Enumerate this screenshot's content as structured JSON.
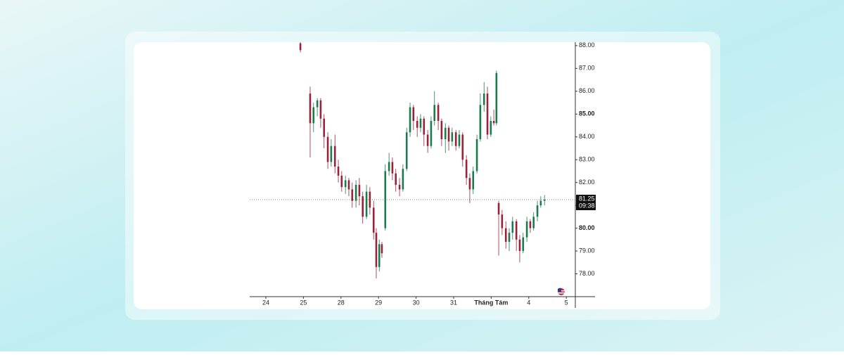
{
  "chart_data": {
    "type": "candlestick",
    "x": [
      0.92,
      1.18,
      1.27,
      1.37,
      1.46,
      1.55,
      1.65,
      1.74,
      1.84,
      1.93,
      2.02,
      2.12,
      2.21,
      2.3,
      2.4,
      2.49,
      2.58,
      2.68,
      2.77,
      2.87,
      2.94,
      3.02,
      3.09,
      3.18,
      3.28,
      3.37,
      3.46,
      3.56,
      3.65,
      3.75,
      3.84,
      3.93,
      4.03,
      4.12,
      4.21,
      4.31,
      4.4,
      4.49,
      4.59,
      4.68,
      4.78,
      4.87,
      4.96,
      5.06,
      5.15,
      5.24,
      5.34,
      5.43,
      5.52,
      5.62,
      5.71,
      5.81,
      5.9,
      5.99,
      6.07,
      6.14,
      6.2,
      6.29,
      6.39,
      6.48,
      6.57,
      6.67,
      6.76,
      6.85,
      6.95,
      7.04,
      7.13,
      7.23,
      7.32,
      7.42
    ],
    "open": [
      88.1,
      85.9,
      84.6,
      85.3,
      85.6,
      84.8,
      84.0,
      82.9,
      83.6,
      82.7,
      82.3,
      81.8,
      82.1,
      81.7,
      81.2,
      81.9,
      81.4,
      80.5,
      81.6,
      80.9,
      79.8,
      78.3,
      79.3,
      80.0,
      82.5,
      82.9,
      82.4,
      81.9,
      81.7,
      82.6,
      84.2,
      85.3,
      84.7,
      84.4,
      84.8,
      84.1,
      83.6,
      84.7,
      85.4,
      84.7,
      83.9,
      84.4,
      83.8,
      84.2,
      83.6,
      84.1,
      83.0,
      82.2,
      81.7,
      82.5,
      83.9,
      85.4,
      85.9,
      84.1,
      84.7,
      84.6,
      81.1,
      80.6,
      80.0,
      79.4,
      79.8,
      80.3,
      79.5,
      79.0,
      79.6,
      80.3,
      80.0,
      80.5,
      81.0,
      81.2
    ],
    "high": [
      88.15,
      86.2,
      85.5,
      85.7,
      85.7,
      85.0,
      84.2,
      83.9,
      84.1,
      83.0,
      82.5,
      82.3,
      82.2,
      82.0,
      82.1,
      82.2,
      81.6,
      81.9,
      81.8,
      81.2,
      80.0,
      79.5,
      79.4,
      82.8,
      83.3,
      83.1,
      82.6,
      82.2,
      82.8,
      84.4,
      85.5,
      85.4,
      84.9,
      85.0,
      84.9,
      84.3,
      84.9,
      86.0,
      85.5,
      84.8,
      84.6,
      84.5,
      84.4,
      84.3,
      84.3,
      84.2,
      83.2,
      82.4,
      82.7,
      84.1,
      85.9,
      86.4,
      86.2,
      84.9,
      85.2,
      86.9,
      81.2,
      80.8,
      80.3,
      80.0,
      80.5,
      80.4,
      79.7,
      79.8,
      80.5,
      80.4,
      80.7,
      81.2,
      81.4,
      81.45
    ],
    "low": [
      87.7,
      83.1,
      84.2,
      84.9,
      84.4,
      83.5,
      82.6,
      82.7,
      82.4,
      82.0,
      81.6,
      81.5,
      81.4,
      80.9,
      80.9,
      81.0,
      80.2,
      80.4,
      80.6,
      79.5,
      77.8,
      78.1,
      78.7,
      79.9,
      82.3,
      82.1,
      81.6,
      81.4,
      81.6,
      82.5,
      84.0,
      84.3,
      84.0,
      84.2,
      83.6,
      83.3,
      83.5,
      84.5,
      84.3,
      83.6,
      83.3,
      83.4,
      83.6,
      83.4,
      83.5,
      82.7,
      81.9,
      81.1,
      81.5,
      82.4,
      83.8,
      85.1,
      83.9,
      84.0,
      84.5,
      84.5,
      78.8,
      79.7,
      79.1,
      79.0,
      79.5,
      79.0,
      78.5,
      78.9,
      79.4,
      79.8,
      79.9,
      80.3,
      80.9,
      81.0
    ],
    "close": [
      87.8,
      84.6,
      85.3,
      85.6,
      84.8,
      84.0,
      82.9,
      83.6,
      82.7,
      82.3,
      81.8,
      82.1,
      81.7,
      81.2,
      81.9,
      81.4,
      80.5,
      81.6,
      80.9,
      79.8,
      78.3,
      79.3,
      78.9,
      82.5,
      82.9,
      82.4,
      81.9,
      81.7,
      82.6,
      84.2,
      85.3,
      84.7,
      84.4,
      84.8,
      84.1,
      83.6,
      84.7,
      85.4,
      84.7,
      83.9,
      84.4,
      83.8,
      84.2,
      83.6,
      84.1,
      83.0,
      82.2,
      81.7,
      82.5,
      83.9,
      85.4,
      85.9,
      84.1,
      84.7,
      84.6,
      86.8,
      80.6,
      80.0,
      79.4,
      79.8,
      80.3,
      79.5,
      79.0,
      79.6,
      80.3,
      80.0,
      80.5,
      81.0,
      81.2,
      81.25
    ],
    "xlim": [
      -0.43,
      8.24
    ],
    "xticks": [
      {
        "value": 0,
        "label": "24"
      },
      {
        "value": 1,
        "label": "25"
      },
      {
        "value": 2,
        "label": "28"
      },
      {
        "value": 3,
        "label": "29"
      },
      {
        "value": 4,
        "label": "30"
      },
      {
        "value": 5,
        "label": "31"
      },
      {
        "value": 6,
        "label": "Tháng Tám"
      },
      {
        "value": 7,
        "label": "4"
      },
      {
        "value": 8,
        "label": "5"
      }
    ],
    "ylim": [
      77.0,
      88.15
    ],
    "yticks": [
      {
        "value": 78,
        "label": "78.00"
      },
      {
        "value": 79,
        "label": "79.00"
      },
      {
        "value": 80,
        "label": "80.00"
      },
      {
        "value": 81,
        "label": "81.00"
      },
      {
        "value": 82,
        "label": "82.00"
      },
      {
        "value": 83,
        "label": "83.00"
      },
      {
        "value": 84,
        "label": "84.00"
      },
      {
        "value": 85,
        "label": "85.00"
      },
      {
        "value": 86,
        "label": "86.00"
      },
      {
        "value": 87,
        "label": "87.00"
      },
      {
        "value": 88,
        "label": "88.00"
      }
    ],
    "up_color": "#1c7a4f",
    "down_color": "#962339",
    "last_price": 81.25,
    "countdown": "09:38"
  }
}
